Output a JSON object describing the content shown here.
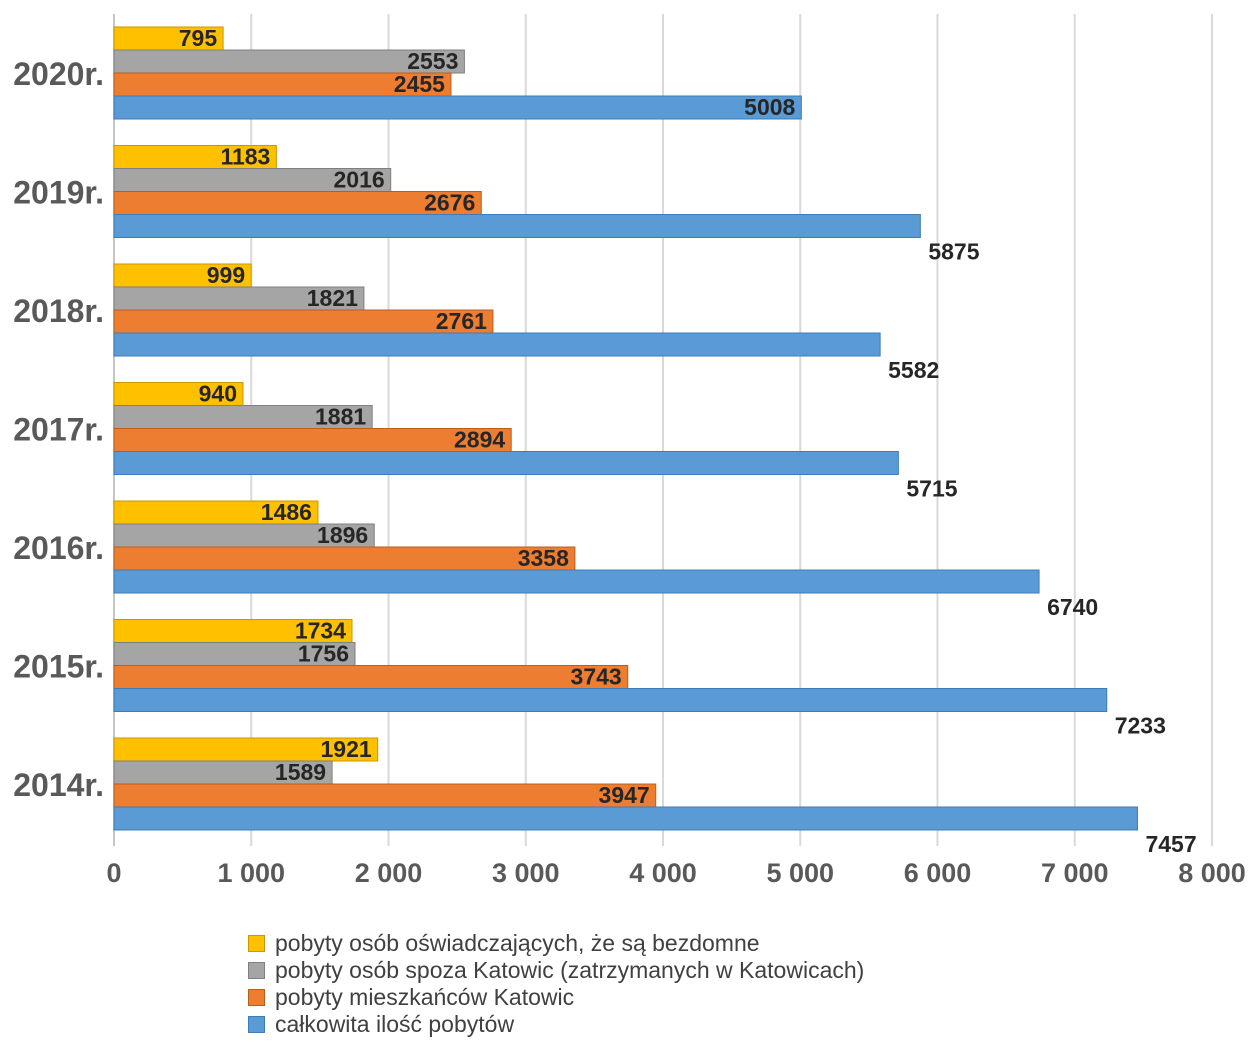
{
  "chart_data": {
    "type": "bar",
    "orientation": "horizontal",
    "title": "",
    "xlabel": "",
    "ylabel": "",
    "xlim": [
      0,
      8000
    ],
    "x_ticks": [
      0,
      1000,
      2000,
      3000,
      4000,
      5000,
      6000,
      7000,
      8000
    ],
    "x_tick_labels": [
      "0",
      "1 000",
      "2 000",
      "3 000",
      "4 000",
      "5 000",
      "6 000",
      "7 000",
      "8 000"
    ],
    "grid": "vertical",
    "legend_position": "bottom",
    "categories": [
      "2020r.",
      "2019r.",
      "2018r.",
      "2017r.",
      "2016r.",
      "2015r.",
      "2014r."
    ],
    "series": [
      {
        "name": "pobyty osób oświadczających, że są bezdomne",
        "color": "#FFC000",
        "values": [
          795,
          1183,
          999,
          940,
          1486,
          1734,
          1921
        ]
      },
      {
        "name": "pobyty osób spoza  Katowic (zatrzymanych w Katowicach)",
        "color": "#A5A5A5",
        "values": [
          2553,
          2016,
          1821,
          1881,
          1896,
          1756,
          1589
        ]
      },
      {
        "name": "pobyty mieszkańców Katowic",
        "color": "#ED7D31",
        "values": [
          2455,
          2676,
          2761,
          2894,
          3358,
          3743,
          3947
        ]
      },
      {
        "name": "całkowita ilość pobytów",
        "color": "#5B9BD5",
        "values": [
          5008,
          5875,
          5582,
          5715,
          6740,
          7233,
          7457
        ]
      }
    ]
  }
}
